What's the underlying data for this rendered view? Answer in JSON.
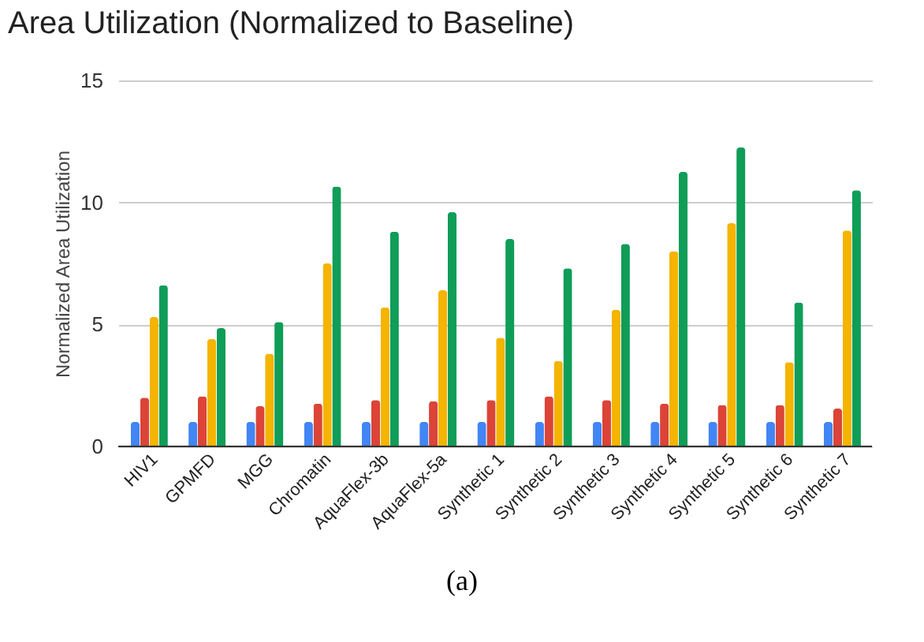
{
  "chart_data": {
    "type": "bar",
    "title": "Area Utilization (Normalized to Baseline)",
    "ylabel": "Normalized Area Utilization",
    "categories": [
      "HIV1",
      "GPMFD",
      "MGG",
      "Chromatin",
      "AquaFlex-3b",
      "AquaFlex-5a",
      "Synthetic 1",
      "Synthetic 2",
      "Synthetic 3",
      "Synthetic 4",
      "Synthetic 5",
      "Synthetic 6",
      "Synthetic 7"
    ],
    "series": [
      {
        "color": "#4285f4",
        "values": [
          1,
          1,
          1,
          1,
          1,
          1,
          1,
          1,
          1,
          1,
          1,
          1,
          1
        ]
      },
      {
        "color": "#db4437",
        "values": [
          2.0,
          2.05,
          1.65,
          1.75,
          1.9,
          1.85,
          1.9,
          2.05,
          1.9,
          1.75,
          1.7,
          1.7,
          1.55
        ]
      },
      {
        "color": "#f4b400",
        "values": [
          5.3,
          4.4,
          3.8,
          7.5,
          5.7,
          6.4,
          4.45,
          3.5,
          5.6,
          8.0,
          9.15,
          3.45,
          8.85
        ]
      },
      {
        "color": "#0f9d58",
        "values": [
          6.6,
          4.85,
          5.1,
          10.65,
          8.8,
          9.6,
          8.5,
          7.3,
          8.3,
          11.25,
          12.25,
          5.9,
          10.5
        ]
      }
    ],
    "ylim": [
      0,
      15
    ],
    "yticks": [
      0,
      5,
      10,
      15
    ],
    "grid": "y",
    "legend": false,
    "annotations": [
      "(a)"
    ]
  }
}
